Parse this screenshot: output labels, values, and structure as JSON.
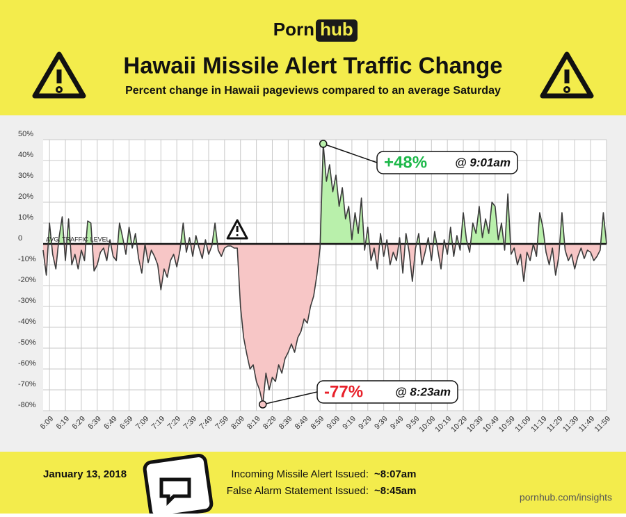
{
  "header": {
    "logo": [
      "Porn",
      "hub"
    ]
  },
  "chart_data": {
    "type": "line",
    "title": "Hawaii Missile Alert Traffic Change",
    "subtitle": "Percent change in Hawaii pageviews compared to an average Saturday",
    "baseline_label": "AVG. TRAFFIC LEVEL",
    "x": [
      "6:05",
      "6:07",
      "6:09",
      "6:11",
      "6:13",
      "6:15",
      "6:17",
      "6:19",
      "6:21",
      "6:23",
      "6:25",
      "6:27",
      "6:29",
      "6:31",
      "6:33",
      "6:35",
      "6:37",
      "6:39",
      "6:41",
      "6:43",
      "6:45",
      "6:47",
      "6:49",
      "6:51",
      "6:53",
      "6:55",
      "6:57",
      "6:59",
      "7:01",
      "7:03",
      "7:05",
      "7:07",
      "7:09",
      "7:11",
      "7:13",
      "7:15",
      "7:17",
      "7:19",
      "7:21",
      "7:23",
      "7:25",
      "7:27",
      "7:29",
      "7:31",
      "7:33",
      "7:35",
      "7:37",
      "7:39",
      "7:41",
      "7:43",
      "7:45",
      "7:47",
      "7:49",
      "7:51",
      "7:53",
      "7:55",
      "7:57",
      "7:59",
      "8:01",
      "8:03",
      "8:05",
      "8:07",
      "8:09",
      "8:11",
      "8:13",
      "8:15",
      "8:17",
      "8:19",
      "8:21",
      "8:23",
      "8:25",
      "8:27",
      "8:29",
      "8:31",
      "8:33",
      "8:35",
      "8:37",
      "8:39",
      "8:41",
      "8:43",
      "8:45",
      "8:47",
      "8:49",
      "8:51",
      "8:53",
      "8:55",
      "8:57",
      "8:59",
      "9:01",
      "9:03",
      "9:05",
      "9:07",
      "9:09",
      "9:11",
      "9:13",
      "9:15",
      "9:17",
      "9:19",
      "9:21",
      "9:23",
      "9:25",
      "9:27",
      "9:29",
      "9:31",
      "9:33",
      "9:35",
      "9:37",
      "9:39",
      "9:41",
      "9:43",
      "9:45",
      "9:47",
      "9:49",
      "9:51",
      "9:53",
      "9:55",
      "9:57",
      "9:59",
      "10:01",
      "10:03",
      "10:05",
      "10:07",
      "10:09",
      "10:11",
      "10:13",
      "10:15",
      "10:17",
      "10:19",
      "10:21",
      "10:23",
      "10:25",
      "10:27",
      "10:29",
      "10:31",
      "10:33",
      "10:35",
      "10:37",
      "10:39",
      "10:41",
      "10:43",
      "10:45",
      "10:47",
      "10:49",
      "10:51",
      "10:53",
      "10:55",
      "10:57",
      "10:59",
      "11:01",
      "11:03",
      "11:05",
      "11:07",
      "11:09",
      "11:11",
      "11:13",
      "11:15",
      "11:17",
      "11:19",
      "11:21",
      "11:23",
      "11:25",
      "11:27",
      "11:29",
      "11:31",
      "11:33",
      "11:35",
      "11:37",
      "11:39",
      "11:41",
      "11:43",
      "11:45",
      "11:47",
      "11:49",
      "11:51",
      "11:53",
      "11:55",
      "11:57",
      "11:59"
    ],
    "series": [
      {
        "color": "#3a3a3a",
        "fill_positive": "#b9f0ab",
        "fill_negative": "#f7c6c6",
        "values": [
          -3,
          -15,
          10,
          -5,
          -12,
          3,
          13,
          -8,
          12,
          -10,
          -5,
          -12,
          -3,
          -8,
          11,
          10,
          -13,
          -10,
          -4,
          -2,
          -8,
          2,
          -6,
          -8,
          10,
          3,
          -5,
          8,
          -2,
          5,
          -7,
          -14,
          0,
          -9,
          -3,
          -6,
          -10,
          -22,
          -12,
          -16,
          -8,
          -5,
          -11,
          -3,
          10,
          -4,
          3,
          -6,
          4,
          -2,
          -7,
          2,
          -5,
          -1,
          10,
          -3,
          -6,
          -2,
          -1,
          -1,
          -2,
          -2,
          -30,
          -45,
          -53,
          -60,
          -58,
          -66,
          -70,
          -77,
          -62,
          -70,
          -64,
          -66,
          -58,
          -62,
          -55,
          -52,
          -48,
          -52,
          -45,
          -42,
          -36,
          -38,
          -30,
          -25,
          -15,
          -2,
          48,
          30,
          38,
          25,
          33,
          18,
          27,
          12,
          18,
          2,
          15,
          5,
          22,
          -3,
          8,
          -8,
          -2,
          -12,
          5,
          -6,
          2,
          -10,
          -4,
          -8,
          3,
          -14,
          5,
          -4,
          -18,
          -2,
          5,
          -10,
          -4,
          3,
          -8,
          6,
          -3,
          -12,
          2,
          -5,
          8,
          -6,
          4,
          -3,
          15,
          2,
          -4,
          10,
          5,
          18,
          3,
          12,
          5,
          20,
          18,
          2,
          10,
          -3,
          24,
          -5,
          -2,
          -10,
          -5,
          -18,
          -4,
          -8,
          0,
          -6,
          15,
          8,
          -4,
          -10,
          -2,
          -15,
          -6,
          15,
          -3,
          -8,
          -5,
          -12,
          -6,
          -2,
          -7,
          -3,
          -4,
          -8,
          -6,
          -3,
          15,
          0
        ]
      }
    ],
    "xticks": [
      "6:09",
      "6:19",
      "6:29",
      "6:39",
      "6:49",
      "6:59",
      "7:09",
      "7:19",
      "7:29",
      "7:39",
      "7:49",
      "7:59",
      "8:09",
      "8:19",
      "8:29",
      "8:39",
      "8:49",
      "8:59",
      "9:09",
      "9:19",
      "9:29",
      "9:39",
      "9:49",
      "9:59",
      "10:09",
      "10:19",
      "10:29",
      "10:39",
      "10:49",
      "10:59",
      "11:09",
      "11:19",
      "11:29",
      "11:39",
      "11:49",
      "11:59"
    ],
    "ylim": [
      -80,
      50
    ],
    "yticks": [
      {
        "value": 50,
        "label": "50%"
      },
      {
        "value": 40,
        "label": "40%"
      },
      {
        "value": 30,
        "label": "30%"
      },
      {
        "value": 20,
        "label": "20%"
      },
      {
        "value": 10,
        "label": "10%"
      },
      0,
      {
        "value": -10,
        "label": "-10%"
      },
      {
        "value": -20,
        "label": "-20%"
      },
      {
        "value": -30,
        "label": "-30%"
      },
      {
        "value": -40,
        "label": "-40%"
      },
      {
        "value": -50,
        "label": "-50%"
      },
      {
        "value": -60,
        "label": "-60%"
      },
      {
        "value": -70,
        "label": "-70%"
      },
      {
        "value": -80,
        "label": "-80%"
      }
    ],
    "grid": true,
    "annotations": [
      {
        "x": "9:01",
        "label": "+48%",
        "text": "@ 9:01am",
        "color": "#1db84a"
      },
      {
        "x": "8:23",
        "label": "-77%",
        "text": "@ 8:23am",
        "color": "#e8202a"
      }
    ]
  },
  "footer": {
    "date": "January 13, 2018",
    "events": [
      {
        "label": "Incoming Missile Alert Issued:",
        "time": "~8:07am"
      },
      {
        "label": "False Alarm Statement Issued:",
        "time": "~8:45am"
      }
    ],
    "url": "pornhub.com/insights"
  }
}
